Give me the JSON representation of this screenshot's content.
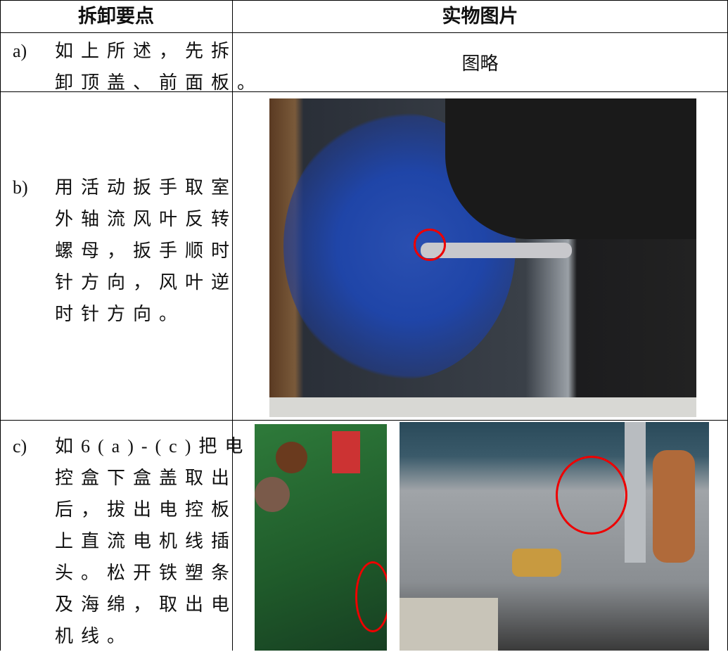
{
  "table": {
    "header": [
      "拆卸要点",
      "实物图片"
    ],
    "rows": [
      {
        "label": "a)",
        "lines": [
          "如上所述，先拆",
          "卸顶盖、前面板。"
        ],
        "image_note": "图略"
      },
      {
        "label": "b)",
        "lines": [
          "用活动扳手取室",
          "外轴流风叶反转",
          "螺母，扳手顺时",
          "针方向，风叶逆",
          "时针方向。"
        ]
      },
      {
        "label": "c)",
        "lines": [
          "如6(a)-(c)把电",
          "控盒下盒盖取出",
          "后，拔出电控板",
          "上直流电机线插",
          "头。松开铁塑条",
          "及海绵，取出电",
          "机线。"
        ]
      }
    ]
  }
}
